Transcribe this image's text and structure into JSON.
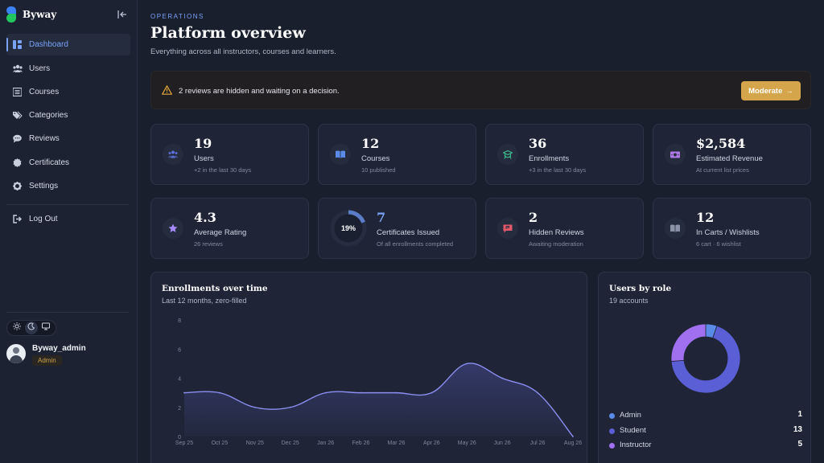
{
  "app": {
    "name": "Byway"
  },
  "sidebar": {
    "items": [
      {
        "label": "Dashboard",
        "icon": "dashboard-icon",
        "active": true
      },
      {
        "label": "Users",
        "icon": "users-icon"
      },
      {
        "label": "Courses",
        "icon": "courses-icon"
      },
      {
        "label": "Categories",
        "icon": "tags-icon"
      },
      {
        "label": "Reviews",
        "icon": "chat-icon"
      },
      {
        "label": "Certificates",
        "icon": "certificate-icon"
      },
      {
        "label": "Settings",
        "icon": "gear-icon"
      }
    ],
    "logout_label": "Log Out",
    "theme_options": [
      "light",
      "dark",
      "system"
    ],
    "theme_selected": "dark",
    "user": {
      "name": "Byway_admin",
      "role": "Admin"
    }
  },
  "header": {
    "eyebrow": "OPERATIONS",
    "title": "Platform overview",
    "subtitle": "Everything across all instructors, courses and learners."
  },
  "alert": {
    "text": "2 reviews are hidden and waiting on a decision.",
    "button_label": "Moderate",
    "button_arrow": "→"
  },
  "stats_row1": [
    {
      "value": "19",
      "label": "Users",
      "sub": "+2 in the last 30 days",
      "icon": "users-icon",
      "color": "#5b6fd6"
    },
    {
      "value": "12",
      "label": "Courses",
      "sub": "10 published",
      "icon": "book-icon",
      "color": "#5a8be8"
    },
    {
      "value": "36",
      "label": "Enrollments",
      "sub": "+3 in the last 30 days",
      "icon": "graduation-icon",
      "color": "#3fbf8f"
    },
    {
      "value": "$2,584",
      "label": "Estimated Revenue",
      "sub": "At current list prices",
      "icon": "money-icon",
      "color": "#b07ae6"
    }
  ],
  "stats_row2": [
    {
      "value": "4.3",
      "label": "Average Rating",
      "sub": "26 reviews",
      "icon": "star-icon",
      "color": "#a78bfa"
    },
    {
      "value": "7",
      "label": "Certificates Issued",
      "sub": "Of all enrollments completed",
      "ring_text": "19%",
      "ring_fraction": 0.19,
      "value_color": "#7aa2f7"
    },
    {
      "value": "2",
      "label": "Hidden Reviews",
      "sub": "Awaiting moderation",
      "icon": "flag-chat-icon",
      "color": "#e25a6a"
    },
    {
      "value": "12",
      "label": "In Carts / Wishlists",
      "sub": "6 cart · 6 wishlist",
      "icon": "book-open-icon",
      "color": "#8a93a8"
    }
  ],
  "enrollments_panel": {
    "title": "Enrollments over time",
    "subtitle": "Last 12 months, zero-filled"
  },
  "roles_panel": {
    "title": "Users by role",
    "subtitle": "19 accounts",
    "roles": [
      {
        "name": "Admin",
        "count": "1",
        "color": "#5a8be8"
      },
      {
        "name": "Student",
        "count": "13",
        "color": "#5b5fd6"
      },
      {
        "name": "Instructor",
        "count": "5",
        "color": "#a070f0"
      }
    ]
  },
  "chart_data": {
    "type": "area",
    "x": [
      "Sep 25",
      "Oct 25",
      "Nov 25",
      "Dec 25",
      "Jan 26",
      "Feb 26",
      "Mar 26",
      "Apr 26",
      "May 26",
      "Jun 26",
      "Jul 26",
      "Aug 26"
    ],
    "series": [
      {
        "values": [
          3,
          3,
          2,
          2,
          3,
          3,
          3,
          3,
          5,
          4,
          3,
          0
        ]
      }
    ],
    "yticks": [
      0,
      2,
      4,
      6,
      8
    ],
    "ylim": [
      0,
      8
    ],
    "grid": false,
    "line_color": "#8b8ff0"
  }
}
